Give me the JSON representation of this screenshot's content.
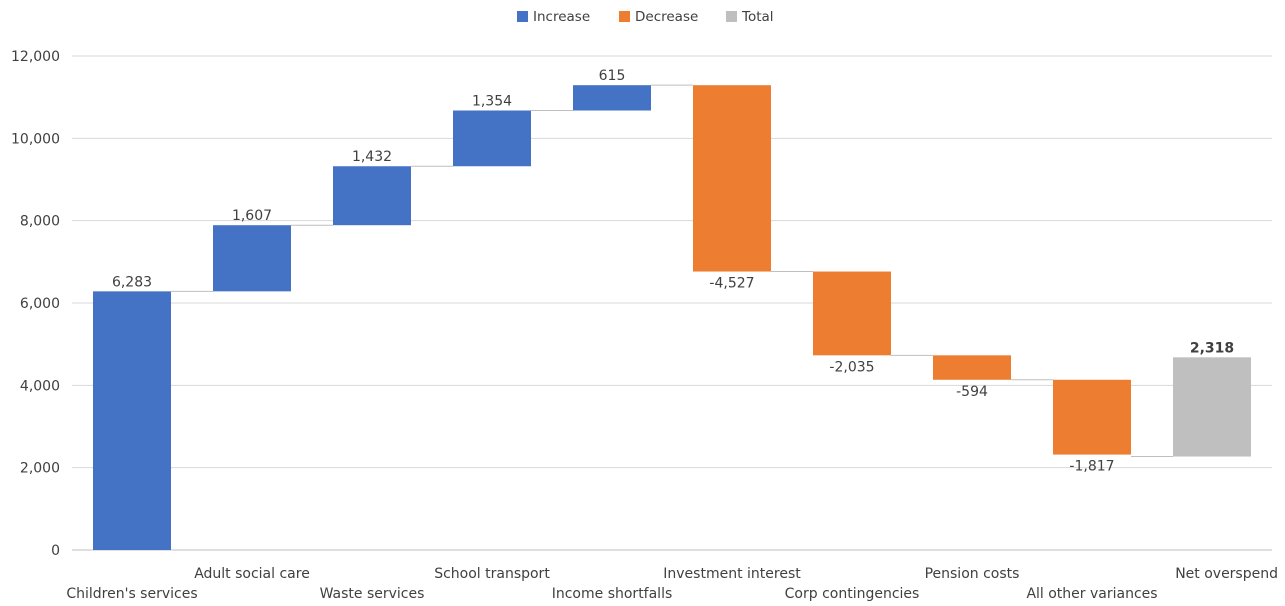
{
  "chart_data": {
    "type": "waterfall",
    "title": "",
    "xlabel": "",
    "ylabel": "",
    "ylim": [
      0,
      12000
    ],
    "yticks": [
      0,
      2000,
      4000,
      6000,
      8000,
      10000,
      12000
    ],
    "ytick_labels": [
      "0",
      "2,000",
      "4,000",
      "6,000",
      "8,000",
      "10,000",
      "12,000"
    ],
    "grid": "horizontal",
    "legend_position": "top-center",
    "legend": [
      {
        "key": "increase",
        "label": "Increase",
        "color": "#4472C4"
      },
      {
        "key": "decrease",
        "label": "Decrease",
        "color": "#ED7D31"
      },
      {
        "key": "total",
        "label": "Total",
        "color": "#BFBFBF"
      }
    ],
    "categories": [
      "Children's services",
      "Adult social care",
      "Waste services",
      "School transport",
      "Income shortfalls",
      "Investment interest",
      "Corp contingencies",
      "Pension costs",
      "All other variances",
      "Net overspend"
    ],
    "values": [
      6283,
      1607,
      1432,
      1354,
      615,
      -4527,
      -2035,
      -594,
      -1817,
      2318
    ],
    "value_labels": [
      "6,283",
      "1,607",
      "1,432",
      "1,354",
      "615",
      "-4,527",
      "-2,035",
      "-594",
      "-1,817",
      "2,318"
    ],
    "kinds": [
      "increase",
      "increase",
      "increase",
      "increase",
      "increase",
      "decrease",
      "decrease",
      "decrease",
      "decrease",
      "total"
    ],
    "total_bar_range": [
      2270,
      4680
    ]
  }
}
